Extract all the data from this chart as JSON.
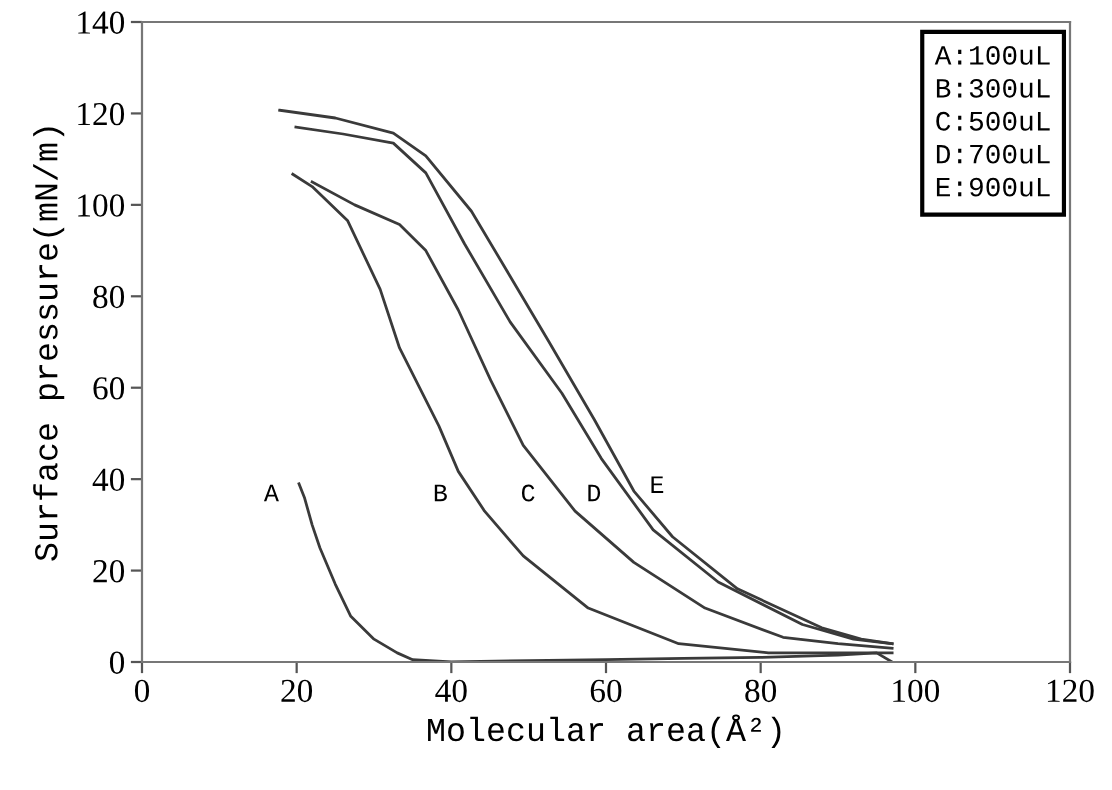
{
  "chart_data": {
    "type": "line",
    "xlabel": "Molecular area(Å²)",
    "ylabel": "Surface pressure(mN/m)",
    "xlim": [
      0,
      120
    ],
    "ylim": [
      0,
      140
    ],
    "xticks": [
      0,
      20,
      40,
      60,
      80,
      100,
      120
    ],
    "yticks": [
      0,
      20,
      40,
      60,
      80,
      100,
      120,
      140
    ],
    "grid": false,
    "marker": "none",
    "line_style": "solid",
    "series": [
      {
        "name": "A",
        "color": "#3a3a3a",
        "x": [
          20.3,
          21,
          22,
          23,
          25,
          27,
          30,
          33,
          35,
          40,
          50,
          60,
          70,
          80,
          90,
          95,
          97
        ],
        "values": [
          39,
          36,
          30,
          25,
          17,
          10,
          5,
          2,
          0.5,
          0,
          0.3,
          0.5,
          0.8,
          1,
          1.5,
          2,
          0
        ]
      },
      {
        "name": "B",
        "color": "#3a3a3a",
        "x": [
          19.5,
          22,
          26.6,
          30.8,
          33.3,
          38.4,
          40.9,
          44.3,
          49.3,
          57.7,
          69.4,
          81,
          90,
          97
        ],
        "values": [
          106.7,
          104,
          96.5,
          81.5,
          68.7,
          51.6,
          41.7,
          33,
          23.2,
          11.8,
          4,
          2,
          2,
          2
        ]
      },
      {
        "name": "C",
        "color": "#3a3a3a",
        "x": [
          22,
          27.5,
          33.3,
          36.7,
          40.9,
          45.1,
          49.3,
          56,
          63.6,
          72.8,
          82.9,
          90,
          97
        ],
        "values": [
          105,
          100,
          95.7,
          90,
          77,
          61.6,
          47.4,
          33,
          21.8,
          11.8,
          5.4,
          4,
          3
        ]
      },
      {
        "name": "D",
        "color": "#3a3a3a",
        "x": [
          19.9,
          26,
          32.5,
          36.7,
          41.7,
          47.6,
          54.3,
          59.4,
          66.1,
          74.5,
          85.4,
          92,
          97
        ],
        "values": [
          117,
          115.5,
          113.5,
          107,
          91.5,
          74.4,
          58.8,
          44.5,
          28.9,
          17.5,
          8.2,
          5,
          4
        ]
      },
      {
        "name": "E",
        "color": "#3a3a3a",
        "x": [
          17.8,
          25,
          32.5,
          36.7,
          42.6,
          47.6,
          52.6,
          58.5,
          63.6,
          68.6,
          77,
          87.9,
          93,
          97
        ],
        "values": [
          120.7,
          119,
          115.7,
          110.7,
          98.6,
          84.4,
          70.1,
          53,
          37.4,
          27.4,
          16,
          7.5,
          5,
          4
        ]
      }
    ],
    "annotations": [
      "A:100uL",
      "B:300uL",
      "C:500uL",
      "D:700uL",
      "E:900uL"
    ]
  }
}
